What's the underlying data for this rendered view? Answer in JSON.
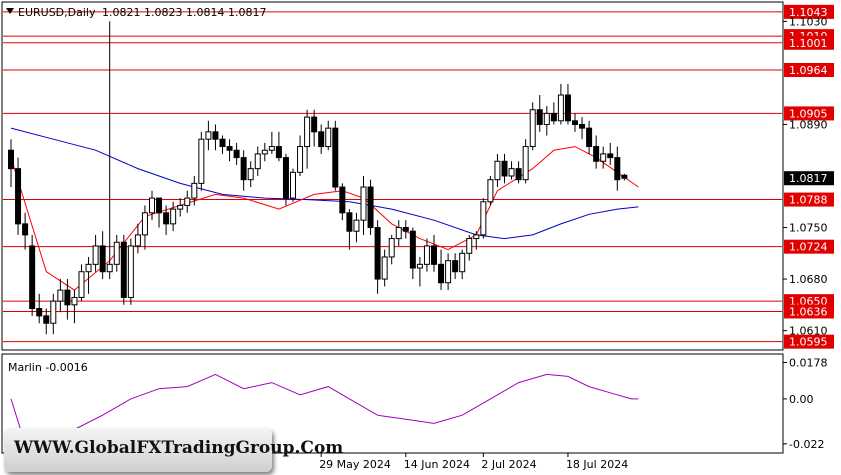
{
  "header": {
    "symbol": "EURUSD,Daily",
    "ohlc": "1.0821 1.0823 1.0814 1.0817"
  },
  "indicator": {
    "label": "Marlin -0.0016",
    "ticks": [
      "0.0178",
      "0.00",
      "-0.022"
    ]
  },
  "watermark": "WWW.GlobalFXTradingGroup.Com",
  "colors": {
    "ma_fast": "#ff0000",
    "ma_slow": "#0000c8",
    "level_line": "#e00000",
    "oscillator": "#a000c0",
    "price_tag": "#000000"
  },
  "chart_data": {
    "type": "candlestick",
    "ylim": [
      1.0585,
      1.1055
    ],
    "price_ticks": [
      "1.1030",
      "1.0890",
      "1.0750",
      "1.0680",
      "1.0610"
    ],
    "current_price": "1.0817",
    "levels": [
      {
        "value": 1.1043,
        "label": "1.1043"
      },
      {
        "value": 1.101,
        "label": "1.1010"
      },
      {
        "value": 1.1001,
        "label": "1.1001"
      },
      {
        "value": 1.0964,
        "label": "1.0964"
      },
      {
        "value": 1.0905,
        "label": "1.0905"
      },
      {
        "value": 1.0788,
        "label": "1.0788"
      },
      {
        "value": 1.0724,
        "label": "1.0724"
      },
      {
        "value": 1.065,
        "label": "1.0650"
      },
      {
        "value": 1.0636,
        "label": "1.0636"
      },
      {
        "value": 1.0595,
        "label": "1.0595"
      }
    ],
    "x_labels": [
      {
        "index": 44,
        "label": "29 May 2024"
      },
      {
        "index": 56,
        "label": "14 Jun 2024"
      },
      {
        "index": 67,
        "label": "2 Jul 2024"
      },
      {
        "index": 79,
        "label": "18 Jul 2024"
      }
    ],
    "candles": [
      [
        1.0855,
        1.087,
        1.0805,
        1.083
      ],
      [
        1.083,
        1.0845,
        1.074,
        1.0755
      ],
      [
        1.0755,
        1.077,
        1.072,
        1.074
      ],
      [
        1.0725,
        1.074,
        1.063,
        1.064
      ],
      [
        1.064,
        1.066,
        1.062,
        1.063
      ],
      [
        1.063,
        1.064,
        1.0605,
        1.062
      ],
      [
        1.062,
        1.066,
        1.0605,
        1.065
      ],
      [
        1.065,
        1.068,
        1.0635,
        1.0665
      ],
      [
        1.0665,
        1.068,
        1.0625,
        1.0645
      ],
      [
        1.0645,
        1.0665,
        1.062,
        1.0655
      ],
      [
        1.0655,
        1.07,
        1.065,
        1.069
      ],
      [
        1.069,
        1.071,
        1.066,
        1.07
      ],
      [
        1.07,
        1.074,
        1.069,
        1.0725
      ],
      [
        1.0725,
        1.0745,
        1.068,
        1.069
      ],
      [
        1.069,
        1.103,
        1.068,
        1.07
      ],
      [
        1.07,
        1.074,
        1.069,
        1.073
      ],
      [
        1.073,
        1.074,
        1.0645,
        1.0655
      ],
      [
        1.0655,
        1.0735,
        1.0645,
        1.0725
      ],
      [
        1.0725,
        1.0755,
        1.0715,
        1.074
      ],
      [
        1.074,
        1.078,
        1.072,
        1.077
      ],
      [
        1.077,
        1.08,
        1.076,
        1.079
      ],
      [
        1.079,
        1.079,
        1.075,
        1.077
      ],
      [
        1.077,
        1.078,
        1.074,
        1.0755
      ],
      [
        1.0755,
        1.0785,
        1.0745,
        1.0775
      ],
      [
        1.0775,
        1.079,
        1.0765,
        1.078
      ],
      [
        1.078,
        1.08,
        1.077,
        1.079
      ],
      [
        1.079,
        1.082,
        1.078,
        1.081
      ],
      [
        1.081,
        1.088,
        1.08,
        1.087
      ],
      [
        1.087,
        1.0895,
        1.0855,
        1.088
      ],
      [
        1.088,
        1.089,
        1.0855,
        1.087
      ],
      [
        1.087,
        1.0875,
        1.085,
        1.086
      ],
      [
        1.086,
        1.087,
        1.084,
        1.0855
      ],
      [
        1.0855,
        1.0865,
        1.0835,
        1.0845
      ],
      [
        1.0845,
        1.0855,
        1.08,
        1.0815
      ],
      [
        1.0815,
        1.084,
        1.0805,
        1.083
      ],
      [
        1.083,
        1.086,
        1.082,
        1.085
      ],
      [
        1.085,
        1.0865,
        1.084,
        1.0855
      ],
      [
        1.0855,
        1.088,
        1.085,
        1.086
      ],
      [
        1.086,
        1.088,
        1.084,
        1.0845
      ],
      [
        1.0845,
        1.085,
        1.078,
        1.079
      ],
      [
        1.079,
        1.083,
        1.0785,
        1.0825
      ],
      [
        1.0825,
        1.0875,
        1.082,
        1.086
      ],
      [
        1.086,
        1.091,
        1.083,
        1.09
      ],
      [
        1.09,
        1.091,
        1.086,
        1.088
      ],
      [
        1.088,
        1.089,
        1.085,
        1.086
      ],
      [
        1.086,
        1.0895,
        1.0855,
        1.0885
      ],
      [
        1.0885,
        1.0895,
        1.08,
        1.0805
      ],
      [
        1.0805,
        1.081,
        1.076,
        1.077
      ],
      [
        1.077,
        1.0775,
        1.072,
        1.0745
      ],
      [
        1.0745,
        1.077,
        1.073,
        1.076
      ],
      [
        1.076,
        1.082,
        1.074,
        1.0805
      ],
      [
        1.0805,
        1.0815,
        1.074,
        1.075
      ],
      [
        1.075,
        1.076,
        1.066,
        1.068
      ],
      [
        1.068,
        1.072,
        1.067,
        1.071
      ],
      [
        1.071,
        1.074,
        1.07,
        1.0735
      ],
      [
        1.0735,
        1.076,
        1.0725,
        1.075
      ],
      [
        1.075,
        1.076,
        1.0735,
        1.0745
      ],
      [
        1.0745,
        1.075,
        1.068,
        1.0695
      ],
      [
        1.0695,
        1.071,
        1.067,
        1.07
      ],
      [
        1.07,
        1.0735,
        1.069,
        1.0725
      ],
      [
        1.0725,
        1.074,
        1.069,
        1.07
      ],
      [
        1.07,
        1.072,
        1.0665,
        1.0675
      ],
      [
        1.0675,
        1.0715,
        1.0665,
        1.0705
      ],
      [
        1.0705,
        1.0715,
        1.068,
        1.069
      ],
      [
        1.069,
        1.072,
        1.068,
        1.0715
      ],
      [
        1.0715,
        1.074,
        1.0705,
        1.0735
      ],
      [
        1.0735,
        1.0745,
        1.072,
        1.074
      ],
      [
        1.074,
        1.079,
        1.0735,
        1.0785
      ],
      [
        1.0785,
        1.082,
        1.078,
        1.0815
      ],
      [
        1.0815,
        1.085,
        1.0805,
        1.084
      ],
      [
        1.084,
        1.085,
        1.081,
        1.082
      ],
      [
        1.082,
        1.084,
        1.0815,
        1.083
      ],
      [
        1.083,
        1.084,
        1.081,
        1.0815
      ],
      [
        1.0815,
        1.087,
        1.081,
        1.086
      ],
      [
        1.086,
        1.092,
        1.0855,
        1.091
      ],
      [
        1.091,
        1.093,
        1.088,
        1.089
      ],
      [
        1.089,
        1.0915,
        1.0875,
        1.0905
      ],
      [
        1.0905,
        1.092,
        1.089,
        1.0895
      ],
      [
        1.0895,
        1.0945,
        1.089,
        1.093
      ],
      [
        1.093,
        1.0945,
        1.089,
        1.0895
      ],
      [
        1.0895,
        1.0905,
        1.088,
        1.089
      ],
      [
        1.089,
        1.09,
        1.087,
        1.0885
      ],
      [
        1.0885,
        1.0895,
        1.085,
        1.086
      ],
      [
        1.086,
        1.0875,
        1.083,
        1.084
      ],
      [
        1.084,
        1.086,
        1.083,
        1.085
      ],
      [
        1.085,
        1.0865,
        1.0835,
        1.0845
      ],
      [
        1.0845,
        1.086,
        1.08,
        1.0815
      ],
      [
        1.0821,
        1.0823,
        1.0814,
        1.0817
      ]
    ],
    "ma_fast": [
      [
        0,
        1.0845
      ],
      [
        5,
        1.069
      ],
      [
        9,
        1.0665
      ],
      [
        14,
        1.0705
      ],
      [
        19,
        1.0765
      ],
      [
        24,
        1.078
      ],
      [
        29,
        1.0795
      ],
      [
        33,
        1.079
      ],
      [
        38,
        1.0775
      ],
      [
        43,
        1.0795
      ],
      [
        47,
        1.08
      ],
      [
        50,
        1.079
      ],
      [
        54,
        1.0755
      ],
      [
        58,
        1.0735
      ],
      [
        62,
        1.072
      ],
      [
        66,
        1.074
      ],
      [
        69,
        1.08
      ],
      [
        74,
        1.083
      ],
      [
        77,
        1.0855
      ],
      [
        80,
        1.086
      ],
      [
        83,
        1.0845
      ],
      [
        86,
        1.0825
      ],
      [
        89,
        1.0805
      ]
    ],
    "ma_slow": [
      [
        0,
        1.0885
      ],
      [
        6,
        1.087
      ],
      [
        12,
        1.0855
      ],
      [
        18,
        1.083
      ],
      [
        24,
        1.081
      ],
      [
        30,
        1.0795
      ],
      [
        36,
        1.079
      ],
      [
        42,
        1.0788
      ],
      [
        48,
        1.0785
      ],
      [
        54,
        1.0775
      ],
      [
        60,
        1.076
      ],
      [
        66,
        1.074
      ],
      [
        70,
        1.0735
      ],
      [
        74,
        1.074
      ],
      [
        78,
        1.0755
      ],
      [
        82,
        1.0768
      ],
      [
        86,
        1.0775
      ],
      [
        89,
        1.0778
      ]
    ],
    "oscillator": {
      "ylim": [
        -0.026,
        0.021
      ],
      "points": [
        [
          0,
          0.0
        ],
        [
          2,
          -0.022
        ],
        [
          5,
          -0.022
        ],
        [
          9,
          -0.015
        ],
        [
          13,
          -0.008
        ],
        [
          17,
          0.0
        ],
        [
          21,
          0.005
        ],
        [
          25,
          0.006
        ],
        [
          29,
          0.012
        ],
        [
          33,
          0.005
        ],
        [
          37,
          0.008
        ],
        [
          41,
          0.002
        ],
        [
          45,
          0.006
        ],
        [
          48,
          0.0
        ],
        [
          52,
          -0.008
        ],
        [
          56,
          -0.01
        ],
        [
          60,
          -0.012
        ],
        [
          64,
          -0.008
        ],
        [
          68,
          0.0
        ],
        [
          72,
          0.008
        ],
        [
          76,
          0.012
        ],
        [
          79,
          0.011
        ],
        [
          82,
          0.006
        ],
        [
          85,
          0.003
        ],
        [
          88,
          0.0
        ],
        [
          89,
          0.0
        ]
      ]
    }
  }
}
